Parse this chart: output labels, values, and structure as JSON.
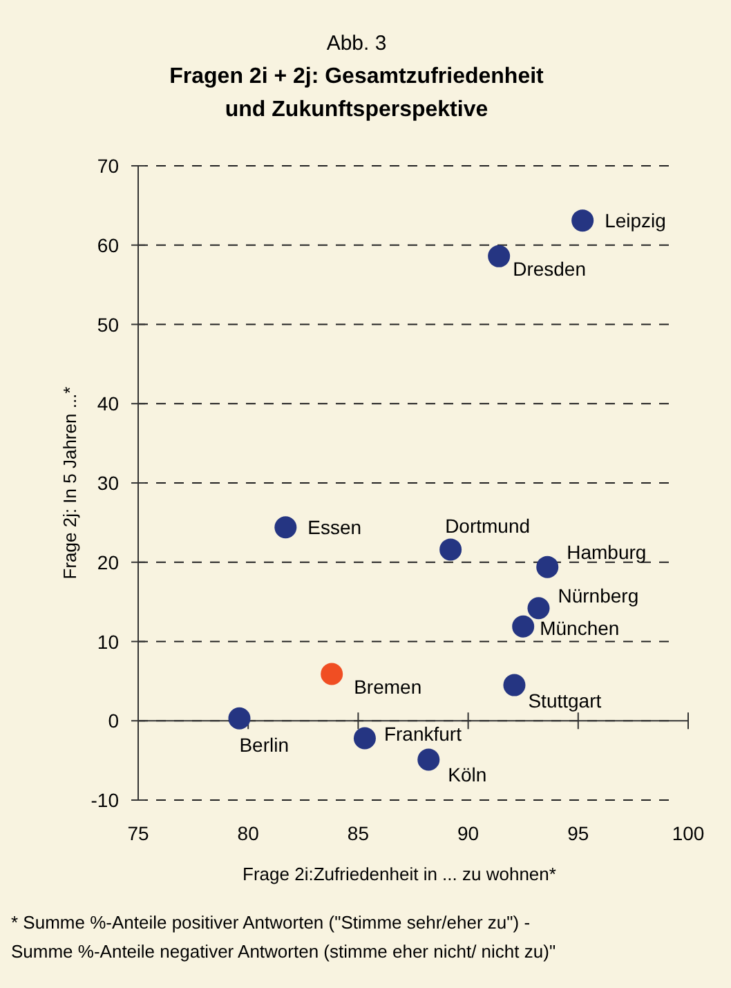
{
  "chart_data": {
    "type": "scatter",
    "title": "Abb. 3",
    "subtitle": "Fragen 2i + 2j: Gesamtzufriedenheit\nund Zukunftsperspektive",
    "xlabel": "Frage 2i:Zufriedenheit in ... zu wohnen*",
    "ylabel": "Frage 2j: In 5 Jahren ...*",
    "x": [
      95.2,
      91.4,
      81.7,
      89.2,
      93.6,
      93.2,
      92.5,
      83.8,
      92.1,
      79.6,
      85.3,
      88.2
    ],
    "values": [
      63.1,
      58.6,
      24.4,
      21.6,
      19.4,
      14.2,
      11.9,
      5.9,
      4.5,
      0.3,
      -2.2,
      -4.9
    ],
    "value_labels": [
      "Leipzig",
      "Dresden",
      "Essen",
      "Dortmund",
      "Hamburg",
      "Nürnberg",
      "München",
      "Bremen",
      "Stuttgart",
      "Berlin",
      "Frankfurt",
      "Köln"
    ],
    "colors": [
      "#253582",
      "#253582",
      "#253582",
      "#253582",
      "#253582",
      "#253582",
      "#253582",
      "#f04e23",
      "#253582",
      "#253582",
      "#253582",
      "#253582"
    ],
    "xlim": [
      75,
      100
    ],
    "xticks": [
      75,
      80,
      85,
      90,
      95,
      100
    ],
    "ylim": [
      -10,
      70
    ],
    "yticks": [
      -10,
      0,
      10,
      20,
      30,
      40,
      50,
      60,
      70
    ],
    "grid": "y",
    "marker": "circle",
    "annotations": [
      "* Summe  %-Anteile positiver Antworten (\"Stimme sehr/eher zu\") -\nSumme  %-Anteile negativer Antworten (stimme eher nicht/ nicht zu)\""
    ]
  }
}
